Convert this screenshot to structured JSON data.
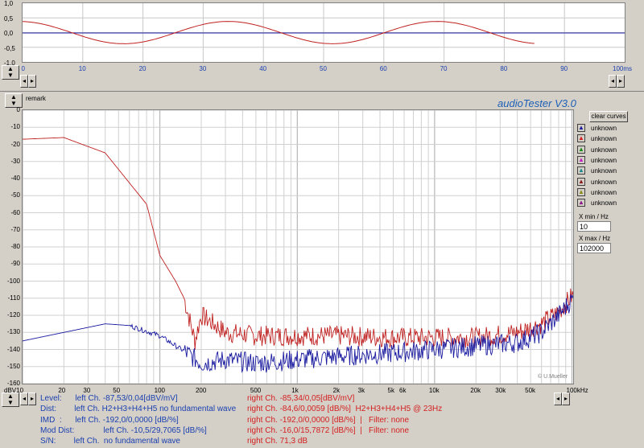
{
  "colors": {
    "left": "#1a1aa0",
    "right": "#c02020",
    "grid": "#c8c8c8",
    "bg": "#d4d0c8"
  },
  "top_plot": {
    "y_ticks": [
      "1,0",
      "0,5",
      "0,0",
      "-0,5",
      "-1,0"
    ],
    "x_ticks": [
      "FS 0",
      "10",
      "20",
      "30",
      "40",
      "50",
      "60",
      "70",
      "80",
      "90",
      "100ms"
    ]
  },
  "remark_label": "remark",
  "app_title": "audioTester  V3.0",
  "main_plot": {
    "y_ticks": [
      "0",
      "-10",
      "-20",
      "-30",
      "-40",
      "-50",
      "-60",
      "-70",
      "-80",
      "-90",
      "-100",
      "-110",
      "-120",
      "-130",
      "-140",
      "-150",
      "-160"
    ],
    "x_ticks": [
      "dBV10",
      "20",
      "50",
      "100",
      "200",
      "500",
      "1k",
      "2k",
      "5k",
      "10k",
      "20k",
      "50k",
      "100kHz"
    ],
    "x_minor": [
      "30",
      "3k",
      "6k",
      "20",
      "30k"
    ],
    "watermark": "© U.Mueller"
  },
  "chart_data": {
    "type": "line",
    "x_scale": "log",
    "xlim": [
      10,
      102000
    ],
    "ylim": [
      -160,
      0
    ],
    "xlabel": "",
    "ylabel": "dBV",
    "series": [
      {
        "name": "right",
        "x": [
          10,
          20,
          40,
          80,
          100,
          130,
          150,
          180,
          200,
          300,
          500,
          1000,
          2000,
          5000,
          10000,
          20000,
          40000,
          60000,
          80000,
          102000
        ],
        "y": [
          -17,
          -16,
          -25,
          -55,
          -85,
          -100,
          -110,
          -135,
          -120,
          -130,
          -132,
          -132,
          -132,
          -133,
          -133,
          -133,
          -130,
          -125,
          -118,
          -108
        ]
      },
      {
        "name": "left",
        "x": [
          10,
          20,
          40,
          60,
          100,
          150,
          200,
          300,
          500,
          1000,
          2000,
          5000,
          10000,
          20000,
          40000,
          60000,
          80000,
          102000
        ],
        "y": [
          -135,
          -130,
          -125,
          -126,
          -132,
          -141,
          -148,
          -146,
          -148,
          -146,
          -144,
          -142,
          -140,
          -138,
          -136,
          -130,
          -120,
          -110
        ]
      }
    ]
  },
  "legend": {
    "clear_label": "clear curves",
    "items": [
      {
        "label": "unknown",
        "color": "#1a1aa0"
      },
      {
        "label": "unknown",
        "color": "#d42020"
      },
      {
        "label": "unknown",
        "color": "#1a8a1a"
      },
      {
        "label": "unknown",
        "color": "#c020c0"
      },
      {
        "label": "unknown",
        "color": "#1a8a8a"
      },
      {
        "label": "unknown",
        "color": "#8a1a1a"
      },
      {
        "label": "unknown",
        "color": "#8a8a1a"
      },
      {
        "label": "unknown",
        "color": "#8a1a8a"
      }
    ],
    "xmin_label": "X min / Hz",
    "xmin_value": "10",
    "xmax_label": "X max / Hz",
    "xmax_value": "102000"
  },
  "stats": {
    "left_lines": [
      "Level:      left Ch. -87,53/0,04[dBV/mV]",
      "Dist:        left Ch. H2+H3+H4+H5 no fundamental wave",
      "IMD  :      left Ch. -192,0/0,0000 [dB/%]",
      "Mod Dist:             left Ch. -10,5/29,7065 [dB/%]",
      "S/N:        left Ch.  no fundamental wave"
    ],
    "right_lines": [
      "right Ch. -85,34/0,05[dBV/mV]",
      "right Ch. -84,6/0,0059 [dB/%]  H2+H3+H4+H5 @ 23Hz",
      "right Ch. -192,0/0,0000 [dB/%]  |   Filter: none",
      "right Ch. -16,0/15,7872 [dB/%]  |   Filter: none",
      "right Ch. 71,3 dB"
    ]
  }
}
